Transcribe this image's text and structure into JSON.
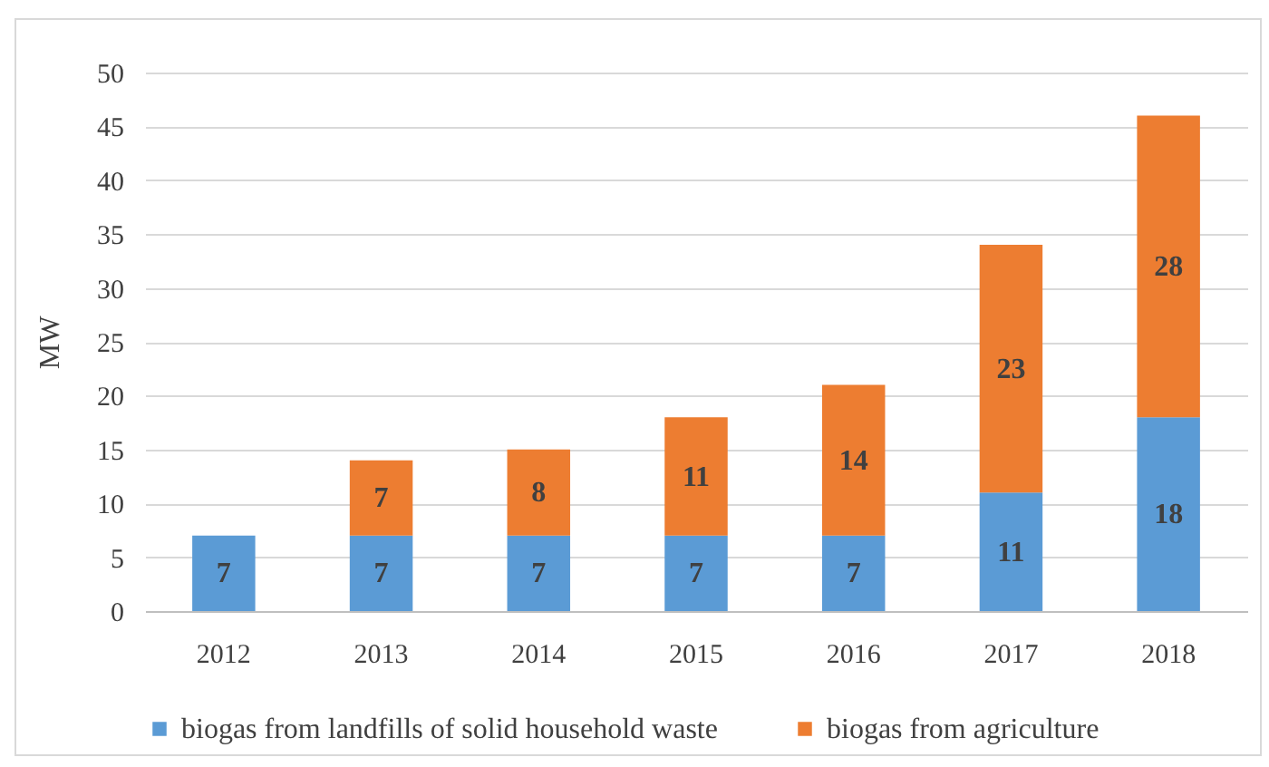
{
  "chart_data": {
    "type": "bar",
    "stacked": true,
    "ylabel": "MW",
    "categories": [
      "2012",
      "2013",
      "2014",
      "2015",
      "2016",
      "2017",
      "2018"
    ],
    "series": [
      {
        "name": "biogas from landfills of solid household waste",
        "color": "#5b9bd5",
        "values": [
          7,
          7,
          7,
          7,
          7,
          11,
          18
        ]
      },
      {
        "name": "biogas from agriculture",
        "color": "#ed7d31",
        "values": [
          null,
          7,
          8,
          11,
          14,
          23,
          28
        ]
      }
    ],
    "ylim": [
      0,
      50
    ],
    "yticks": [
      0,
      5,
      10,
      15,
      20,
      25,
      30,
      35,
      40,
      45,
      50
    ],
    "grid": "y",
    "legend": "bottom",
    "data_labels": true
  }
}
